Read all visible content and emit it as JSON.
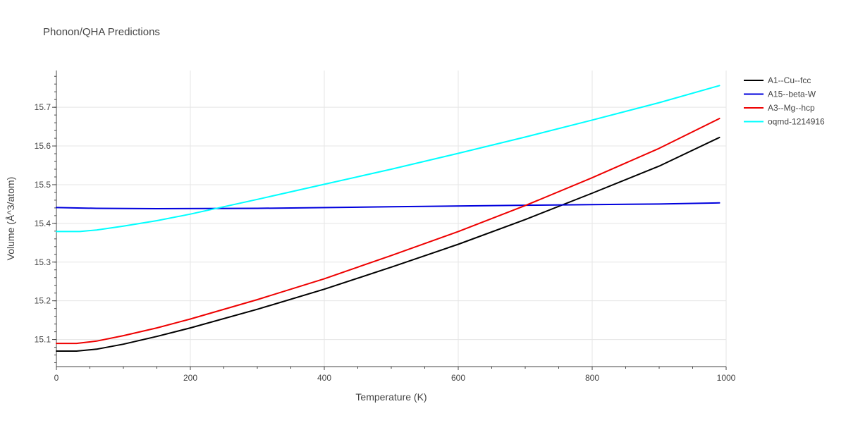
{
  "chart_data": {
    "type": "line",
    "title": "Phonon/QHA Predictions",
    "xlabel": "Temperature (K)",
    "ylabel": "Volume (Å^3/atom)",
    "xlim": [
      0,
      1000
    ],
    "ylim": [
      15.03,
      15.795
    ],
    "xticks": [
      0,
      200,
      400,
      600,
      800,
      1000
    ],
    "yticks": [
      15.1,
      15.2,
      15.3,
      15.4,
      15.5,
      15.6,
      15.7
    ],
    "grid": true,
    "legend_position": "top-right",
    "series": [
      {
        "name": "A1--Cu--fcc",
        "color": "#000000",
        "x": [
          0,
          30,
          60,
          100,
          150,
          200,
          300,
          400,
          500,
          600,
          700,
          800,
          900,
          990
        ],
        "y": [
          15.07,
          15.07,
          15.075,
          15.088,
          15.108,
          15.13,
          15.178,
          15.23,
          15.287,
          15.346,
          15.41,
          15.478,
          15.548,
          15.622
        ]
      },
      {
        "name": "A15--beta-W",
        "color": "#0000dd",
        "x": [
          0,
          60,
          150,
          300,
          500,
          700,
          900,
          990
        ],
        "y": [
          15.441,
          15.439,
          15.438,
          15.439,
          15.443,
          15.447,
          15.45,
          15.453
        ]
      },
      {
        "name": "A3--Mg--hcp",
        "color": "#ee0000",
        "x": [
          0,
          30,
          60,
          100,
          150,
          200,
          300,
          400,
          500,
          600,
          700,
          800,
          900,
          990
        ],
        "y": [
          15.09,
          15.09,
          15.096,
          15.11,
          15.13,
          15.153,
          15.203,
          15.257,
          15.317,
          15.379,
          15.446,
          15.518,
          15.594,
          15.671
        ]
      },
      {
        "name": "oqmd-1214916",
        "color": "#00ffff",
        "x": [
          0,
          35,
          60,
          100,
          150,
          200,
          300,
          400,
          500,
          600,
          700,
          800,
          900,
          990
        ],
        "y": [
          15.379,
          15.379,
          15.383,
          15.393,
          15.407,
          15.424,
          15.462,
          15.501,
          15.54,
          15.581,
          15.623,
          15.667,
          15.712,
          15.756
        ]
      }
    ]
  }
}
